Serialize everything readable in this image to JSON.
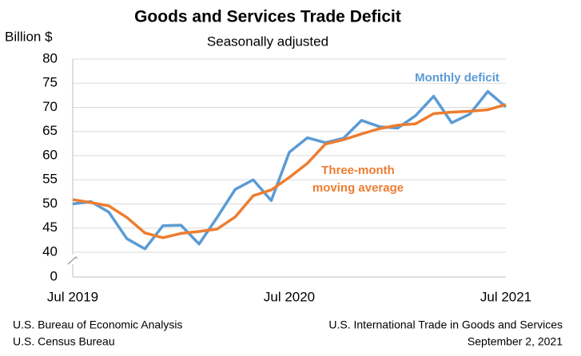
{
  "chart_data": {
    "type": "line",
    "title": "Goods and Services Trade Deficit",
    "subtitle": "Seasonally adjusted",
    "y_label": "Billion $",
    "categories": [
      "Jul 2019",
      null,
      null,
      null,
      null,
      null,
      null,
      null,
      null,
      null,
      null,
      null,
      "Jul 2020",
      null,
      null,
      null,
      null,
      null,
      null,
      null,
      null,
      null,
      null,
      null,
      "Jul 2021"
    ],
    "series": [
      {
        "name": "Monthly deficit",
        "color": "#5b9bd5",
        "values": [
          50.0,
          50.5,
          48.3,
          42.8,
          40.7,
          45.5,
          45.6,
          41.7,
          47.2,
          53.0,
          55.0,
          50.7,
          60.7,
          63.7,
          62.7,
          63.6,
          67.3,
          66.0,
          65.7,
          68.3,
          72.3,
          66.8,
          68.6,
          73.3,
          70.1
        ]
      },
      {
        "name": "Three-month moving average",
        "color": "#ed7d31",
        "values": [
          50.9,
          50.3,
          49.6,
          47.2,
          44.0,
          43.0,
          43.9,
          44.3,
          44.8,
          47.3,
          51.7,
          52.9,
          55.5,
          58.4,
          62.4,
          63.3,
          64.5,
          65.6,
          66.3,
          66.6,
          68.7,
          69.0,
          69.2,
          69.5,
          70.6
        ]
      }
    ],
    "ylim": [
      40,
      80
    ],
    "yticks": [
      0,
      40,
      45,
      50,
      55,
      60,
      65,
      70,
      75,
      80
    ],
    "axis_break": true,
    "grid": true,
    "source_left": [
      "U.S. Bureau of Economic Analysis",
      "U.S. Census Bureau"
    ],
    "source_right": [
      "U.S. International Trade in Goods and Services",
      "September 2, 2021"
    ]
  }
}
